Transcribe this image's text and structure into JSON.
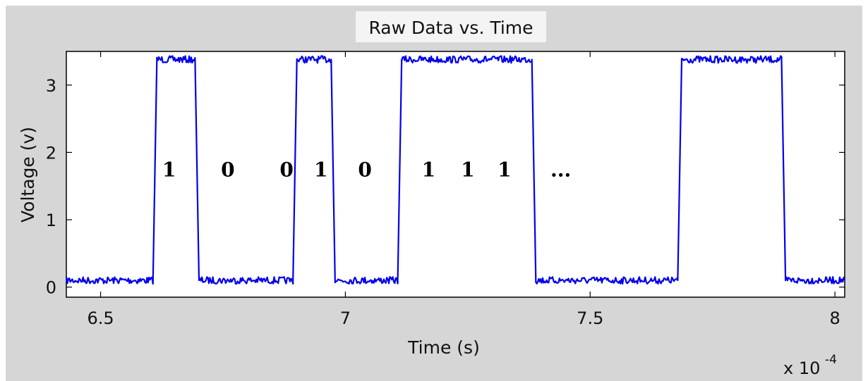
{
  "chart_data": {
    "type": "line",
    "title": "Raw Data vs. Time",
    "xlabel": "Time (s)",
    "ylabel": "Voltage (v)",
    "x_multiplier_base": "x 10",
    "x_multiplier_exponent": "-4",
    "xlim": [
      6.43,
      8.02
    ],
    "ylim": [
      -0.15,
      3.5
    ],
    "x_ticks": [
      6.5,
      7,
      7.5,
      8
    ],
    "x_tick_labels": [
      "6.5",
      "7",
      "7.5",
      "8"
    ],
    "y_ticks": [
      0,
      1,
      2,
      3
    ],
    "y_tick_labels": [
      "0",
      "1",
      "2",
      "3"
    ],
    "grid": false,
    "line_color": "#0000ee",
    "low_level": 0.1,
    "high_level": 3.38,
    "series": [
      {
        "points": [
          [
            6.43,
            0.1
          ],
          [
            6.607,
            0.1
          ],
          [
            6.615,
            3.38
          ],
          [
            6.693,
            3.38
          ],
          [
            6.701,
            0.1
          ],
          [
            6.893,
            0.1
          ],
          [
            6.901,
            3.38
          ],
          [
            6.971,
            3.38
          ],
          [
            6.979,
            0.1
          ],
          [
            7.107,
            0.1
          ],
          [
            7.115,
            3.38
          ],
          [
            7.381,
            3.38
          ],
          [
            7.389,
            0.1
          ],
          [
            7.679,
            0.1
          ],
          [
            7.687,
            3.38
          ],
          [
            7.891,
            3.38
          ],
          [
            7.899,
            0.1
          ],
          [
            8.02,
            0.1
          ]
        ]
      }
    ],
    "annotations": [
      {
        "text": "1",
        "x": 6.64,
        "y": 1.75
      },
      {
        "text": "0",
        "x": 6.76,
        "y": 1.75
      },
      {
        "text": "0",
        "x": 6.88,
        "y": 1.75
      },
      {
        "text": "1",
        "x": 6.95,
        "y": 1.75
      },
      {
        "text": "0",
        "x": 7.04,
        "y": 1.75
      },
      {
        "text": "1",
        "x": 7.17,
        "y": 1.75
      },
      {
        "text": "1",
        "x": 7.25,
        "y": 1.75
      },
      {
        "text": "1",
        "x": 7.325,
        "y": 1.75
      },
      {
        "text": "...",
        "x": 7.44,
        "y": 1.75
      }
    ]
  }
}
